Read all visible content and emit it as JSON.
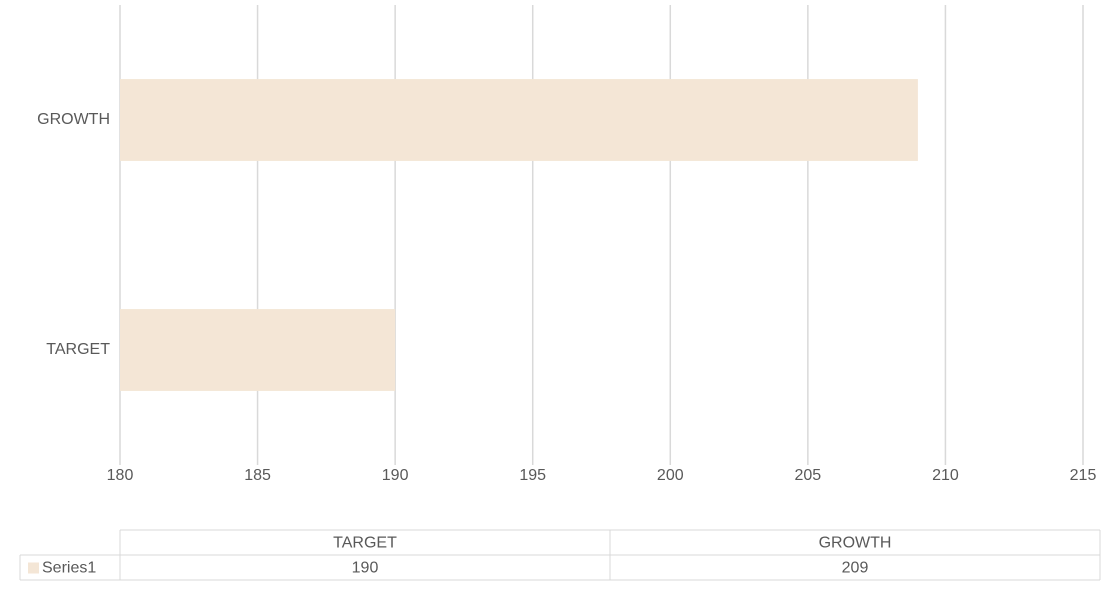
{
  "chart_data": {
    "type": "bar",
    "orientation": "horizontal",
    "categories": [
      "TARGET",
      "GROWTH"
    ],
    "series": [
      {
        "name": "Series1",
        "color": "#f4e6d6",
        "values": [
          190,
          209
        ]
      }
    ],
    "xlim": [
      180,
      215
    ],
    "xticks": [
      180,
      185,
      190,
      195,
      200,
      205,
      210,
      215
    ],
    "grid": true,
    "data_table": true
  }
}
